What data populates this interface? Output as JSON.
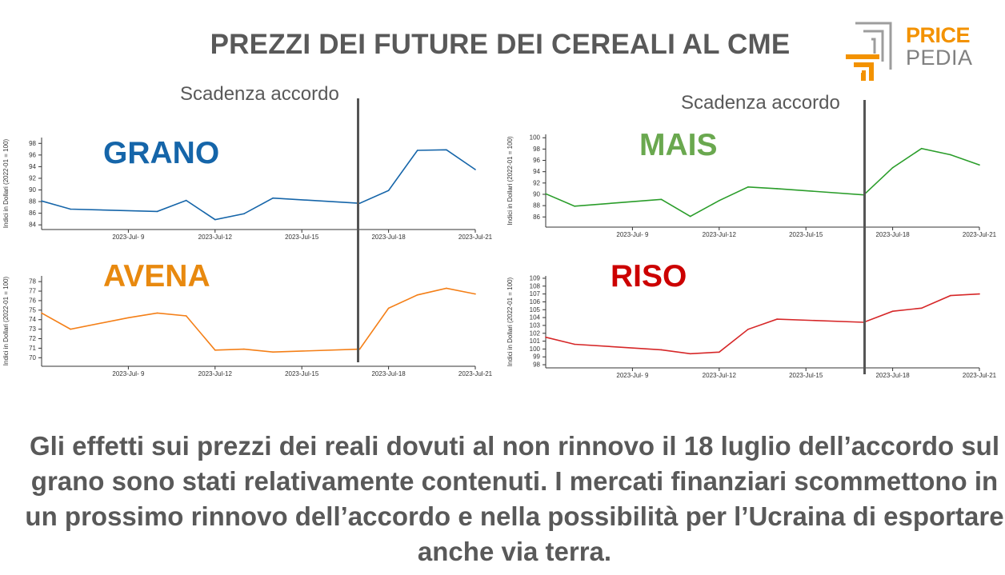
{
  "title": "PREZZI DEI FUTURE DEI CEREALI AL CME",
  "logo": {
    "line1": "PRICE",
    "line2": "PEDIA"
  },
  "annotation": "Scadenza accordo",
  "summary": "Gli effetti sui prezzi dei reali dovuti al non rinnovo il 18 luglio dell’accordo sul grano sono stati relativamente contenuti. I mercati finanziari scommettono in un prossimo rinnovo dell’accordo e nella possibilità per l’Ucraina di esportare anche via terra.",
  "chart_data": [
    {
      "type": "line",
      "label": "GRANO",
      "color": "#1565a9",
      "label_color": "#1565a9",
      "ylabel": "Indici in Dollari (2022-01 = 100)",
      "x": [
        6,
        7,
        10,
        11,
        12,
        13,
        14,
        17,
        18,
        19,
        20,
        21
      ],
      "x_ticks": [
        9,
        12,
        15,
        18,
        21
      ],
      "x_tick_labels": [
        "2023-Jul- 9",
        "2023-Jul-12",
        "2023-Jul-15",
        "2023-Jul-18",
        "2023-Jul-21"
      ],
      "values": [
        88.1,
        86.7,
        86.3,
        88.2,
        84.9,
        85.9,
        88.6,
        87.7,
        89.9,
        96.8,
        96.9,
        93.5
      ],
      "yticks": [
        84,
        86,
        88,
        90,
        92,
        94,
        96,
        98
      ],
      "ylim": [
        83.2,
        99
      ]
    },
    {
      "type": "line",
      "label": "MAIS",
      "color": "#2a9d2a",
      "label_color": "#6aa84f",
      "ylabel": "Indici in Dollari (2022-01 = 100)",
      "x": [
        6,
        7,
        10,
        11,
        12,
        13,
        14,
        17,
        18,
        19,
        20,
        21
      ],
      "x_ticks": [
        9,
        12,
        15,
        18,
        21
      ],
      "x_tick_labels": [
        "2023-Jul- 9",
        "2023-Jul-12",
        "2023-Jul-15",
        "2023-Jul-18",
        "2023-Jul-21"
      ],
      "values": [
        90.1,
        87.9,
        89.1,
        86.1,
        88.9,
        91.3,
        91.0,
        89.9,
        94.7,
        98.1,
        97.0,
        95.2
      ],
      "yticks": [
        86,
        88,
        90,
        92,
        94,
        96,
        98,
        100
      ],
      "ylim": [
        84.2,
        100.6
      ]
    },
    {
      "type": "line",
      "label": "AVENA",
      "color": "#f47f17",
      "label_color": "#e8890f",
      "ylabel": "Indici in Dollari (2022-01 = 100)",
      "x": [
        6,
        7,
        9,
        10,
        11,
        12,
        13,
        14,
        17,
        18,
        19,
        20,
        21
      ],
      "x_ticks": [
        9,
        12,
        15,
        18,
        21
      ],
      "x_tick_labels": [
        "2023-Jul- 9",
        "2023-Jul-12",
        "2023-Jul-15",
        "2023-Jul-18",
        "2023-Jul-21"
      ],
      "values": [
        74.7,
        73.0,
        74.2,
        74.7,
        74.4,
        70.8,
        70.9,
        70.6,
        70.9,
        75.2,
        76.6,
        77.3,
        76.7
      ],
      "yticks": [
        70,
        71,
        72,
        73,
        74,
        75,
        76,
        77,
        78
      ],
      "ylim": [
        69.1,
        78.6
      ]
    },
    {
      "type": "line",
      "label": "RISO",
      "color": "#d62728",
      "label_color": "#cc0000",
      "ylabel": "Indici in Dollari (2022-01 = 100)",
      "x": [
        6,
        7,
        10,
        11,
        12,
        13,
        14,
        17,
        18,
        19,
        20,
        21
      ],
      "x_ticks": [
        9,
        12,
        15,
        18,
        21
      ],
      "x_tick_labels": [
        "2023-Jul- 9",
        "2023-Jul-12",
        "2023-Jul-15",
        "2023-Jul-18",
        "2023-Jul-21"
      ],
      "values": [
        101.5,
        100.6,
        99.9,
        99.4,
        99.6,
        102.5,
        103.8,
        103.4,
        104.8,
        105.2,
        106.8,
        107.0
      ],
      "yticks": [
        98,
        99,
        100,
        101,
        102,
        103,
        104,
        105,
        106,
        107,
        108,
        109
      ],
      "ylim": [
        97.6,
        109.3
      ]
    }
  ]
}
